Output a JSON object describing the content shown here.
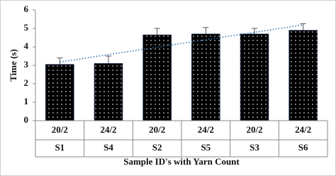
{
  "chart_data": {
    "type": "bar",
    "x_label": "Sample ID's with Yarn Count",
    "y_label": "Time (s)",
    "categories": [
      "S1",
      "S4",
      "S2",
      "S5",
      "S3",
      "S6"
    ],
    "yarn_counts": [
      "20/2",
      "24/2",
      "20/2",
      "24/2",
      "20/2",
      "24/2"
    ],
    "values": [
      3.05,
      3.1,
      4.65,
      4.7,
      4.7,
      4.9
    ],
    "errors": [
      0.35,
      0.4,
      0.35,
      0.35,
      0.3,
      0.35
    ],
    "color": "#000000",
    "ylim": [
      0,
      6
    ],
    "yticks": [
      0,
      1,
      2,
      3,
      4,
      5,
      6
    ],
    "trendline": true,
    "trendline_color": "#2e75b6"
  }
}
